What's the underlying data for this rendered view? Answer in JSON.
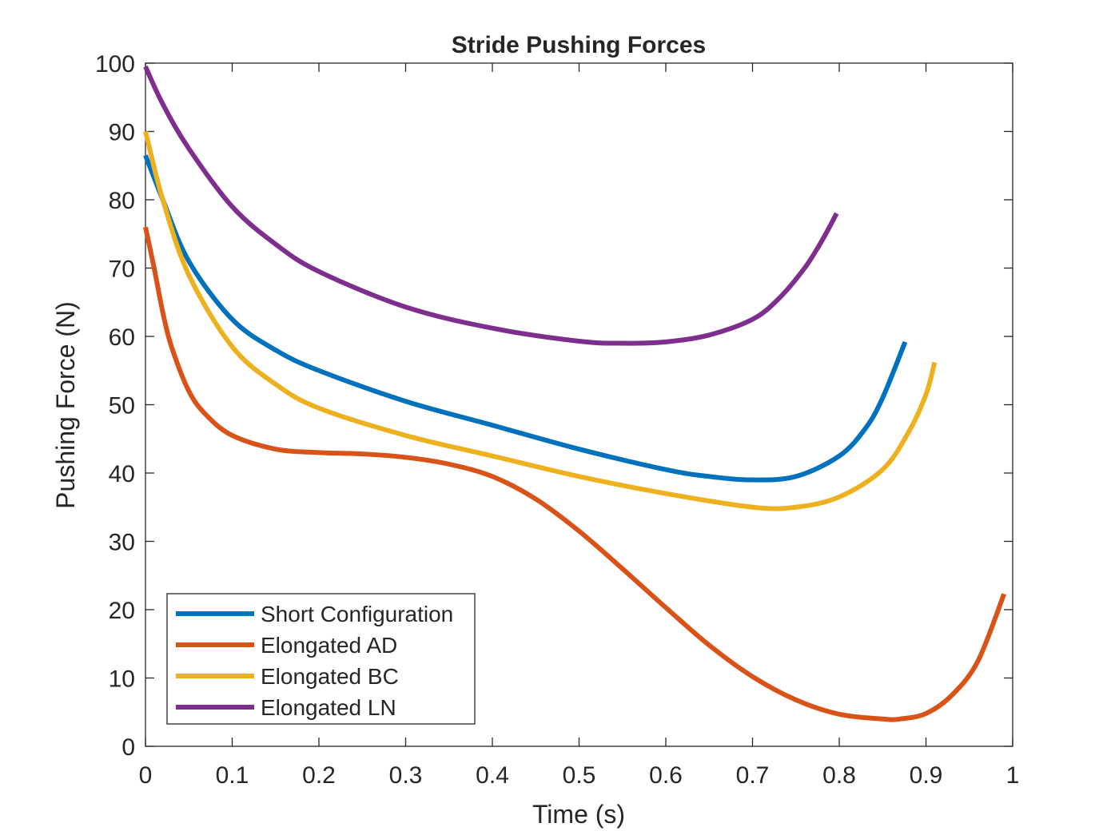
{
  "chart_data": {
    "type": "line",
    "title": "Stride Pushing Forces",
    "xlabel": "Time (s)",
    "ylabel": "Pushing Force (N)",
    "xlim": [
      0,
      1
    ],
    "ylim": [
      0,
      100
    ],
    "xticks": [
      "0",
      "0.1",
      "0.2",
      "0.3",
      "0.4",
      "0.5",
      "0.6",
      "0.7",
      "0.8",
      "0.9",
      "1"
    ],
    "yticks": [
      "0",
      "10",
      "20",
      "30",
      "40",
      "50",
      "60",
      "70",
      "80",
      "90",
      "100"
    ],
    "grid": false,
    "legend_position": "bottom-left",
    "series": [
      {
        "name": "Short Configuration",
        "color": "#0072BD",
        "x": [
          0,
          0.02,
          0.05,
          0.1,
          0.15,
          0.2,
          0.3,
          0.4,
          0.5,
          0.6,
          0.65,
          0.7,
          0.75,
          0.8,
          0.83,
          0.85,
          0.876
        ],
        "y": [
          86.5,
          80,
          71,
          62.5,
          58,
          55,
          50.5,
          47,
          43.5,
          40.5,
          39.5,
          39,
          39.5,
          42.5,
          46.5,
          51,
          59.2
        ]
      },
      {
        "name": "Elongated AD",
        "color": "#D95319",
        "x": [
          0,
          0.01,
          0.02,
          0.03,
          0.05,
          0.07,
          0.1,
          0.15,
          0.2,
          0.25,
          0.3,
          0.35,
          0.4,
          0.45,
          0.5,
          0.55,
          0.6,
          0.65,
          0.7,
          0.75,
          0.8,
          0.85,
          0.87,
          0.9,
          0.93,
          0.96,
          0.99
        ],
        "y": [
          76,
          70,
          63.5,
          58.5,
          52,
          48.5,
          45.5,
          43.5,
          43,
          42.8,
          42.3,
          41.3,
          39.5,
          36.2,
          31.5,
          26,
          20.3,
          14.8,
          10.2,
          6.8,
          4.7,
          4,
          4,
          4.8,
          7.5,
          12.5,
          22.3
        ]
      },
      {
        "name": "Elongated BC",
        "color": "#EDB120",
        "x": [
          0,
          0.02,
          0.05,
          0.1,
          0.15,
          0.2,
          0.3,
          0.4,
          0.5,
          0.6,
          0.7,
          0.75,
          0.8,
          0.85,
          0.88,
          0.9,
          0.91
        ],
        "y": [
          90,
          80,
          69,
          58.5,
          53,
          49.5,
          45.5,
          42.5,
          39.5,
          37,
          35,
          35,
          36.5,
          40.5,
          46,
          51.5,
          56.2
        ]
      },
      {
        "name": "Elongated LN",
        "color": "#7E2F8E",
        "x": [
          0,
          0.02,
          0.05,
          0.1,
          0.15,
          0.2,
          0.3,
          0.4,
          0.5,
          0.55,
          0.6,
          0.65,
          0.7,
          0.73,
          0.76,
          0.78,
          0.797
        ],
        "y": [
          99.5,
          94,
          87.5,
          79,
          73.5,
          69.5,
          64.3,
          61.2,
          59.3,
          59,
          59.2,
          60.2,
          62.5,
          65.5,
          70,
          74,
          78
        ]
      }
    ]
  }
}
